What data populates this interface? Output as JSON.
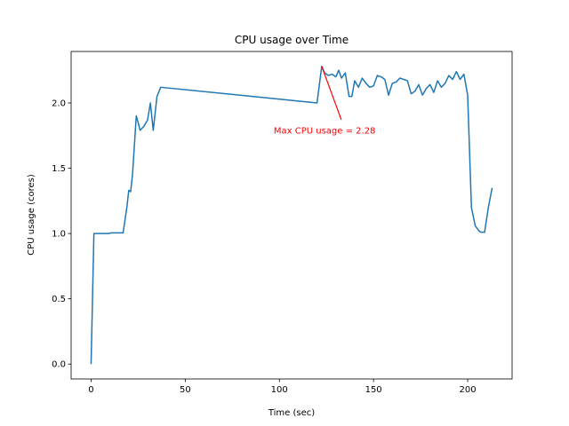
{
  "chart_data": {
    "type": "line",
    "title": "CPU usage over Time",
    "xlabel": "Time (sec)",
    "ylabel": "CPU usage (cores)",
    "xlim": [
      -10.6,
      223.6
    ],
    "ylim": [
      -0.114,
      2.394
    ],
    "xticks": [
      0,
      50,
      100,
      150,
      200
    ],
    "yticks": [
      0.0,
      0.5,
      1.0,
      1.5,
      2.0
    ],
    "xtick_labels": [
      "0",
      "50",
      "100",
      "150",
      "200"
    ],
    "ytick_labels": [
      "0.0",
      "0.5",
      "1.0",
      "1.5",
      "2.0"
    ],
    "grid": false,
    "line_color": "#1f77b4",
    "annotation": {
      "text": "Max CPU usage = 2.28",
      "color": "#ff0000",
      "point": [
        122.5,
        2.28
      ],
      "text_pos": [
        97,
        1.79
      ]
    },
    "series": [
      {
        "x": [
          0,
          1.5,
          3,
          5,
          7,
          9,
          11,
          13,
          15,
          17,
          19,
          20,
          21,
          22,
          24,
          25,
          26,
          28,
          30,
          31.5,
          33,
          35,
          37,
          120,
          122.5,
          124,
          126,
          128,
          130,
          131.5,
          133,
          135,
          137,
          138.5,
          140,
          142,
          144,
          146,
          148,
          150,
          152,
          154,
          156,
          158,
          160,
          162,
          164,
          166,
          168,
          170,
          172,
          174,
          176,
          178,
          180,
          182,
          184,
          186,
          188,
          190,
          192,
          194,
          196,
          198,
          200,
          202,
          204,
          206,
          207,
          209,
          211,
          213
        ],
        "y": [
          0.0,
          1.0,
          1.0,
          1.0,
          1.0,
          1.0,
          1.005,
          1.005,
          1.005,
          1.005,
          1.2,
          1.33,
          1.32,
          1.45,
          1.9,
          1.85,
          1.79,
          1.82,
          1.87,
          2.0,
          1.79,
          2.05,
          2.12,
          2.0,
          2.28,
          2.23,
          2.21,
          2.22,
          2.2,
          2.25,
          2.19,
          2.23,
          2.05,
          2.05,
          2.17,
          2.12,
          2.19,
          2.15,
          2.12,
          2.13,
          2.21,
          2.2,
          2.18,
          2.06,
          2.15,
          2.16,
          2.19,
          2.18,
          2.17,
          2.07,
          2.09,
          2.14,
          2.06,
          2.11,
          2.14,
          2.08,
          2.17,
          2.12,
          2.15,
          2.21,
          2.18,
          2.24,
          2.18,
          2.22,
          2.06,
          1.2,
          1.06,
          1.02,
          1.01,
          1.01,
          1.2,
          1.35
        ]
      }
    ]
  }
}
